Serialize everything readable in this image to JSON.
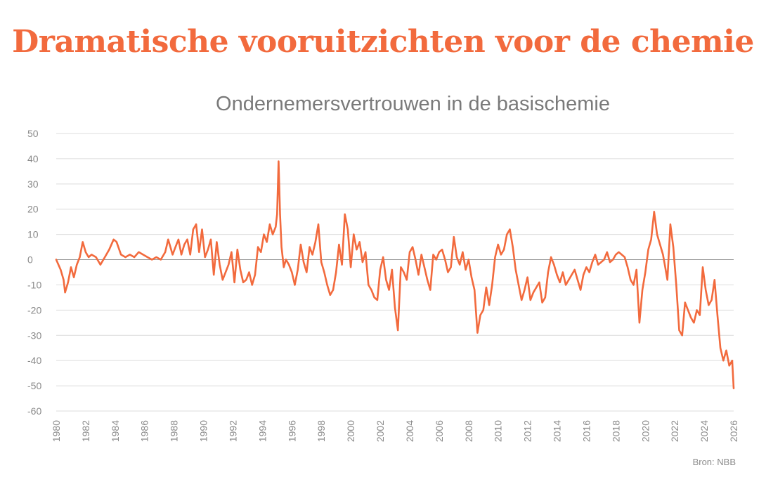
{
  "headline": "Dramatische vooruitzichten voor de chemie",
  "source": "Bron: NBB",
  "colors": {
    "line": "#f26a3d",
    "grid": "#dcdcdc",
    "zero_line": "#999999",
    "text": "#8a8a8a"
  },
  "chart_data": {
    "type": "line",
    "title": "Ondernemersvertrouwen in de basischemie",
    "xlabel": "",
    "ylabel": "",
    "xlim": [
      1980,
      2026
    ],
    "ylim": [
      -60,
      50
    ],
    "grid": true,
    "legend": "none",
    "x_ticks": [
      "1980",
      "1982",
      "1984",
      "1986",
      "1988",
      "1990",
      "1992",
      "1994",
      "1996",
      "1998",
      "2000",
      "2002",
      "2004",
      "2006",
      "2008",
      "2010",
      "2012",
      "2014",
      "2016",
      "2018",
      "2020",
      "2022",
      "2024",
      "2026"
    ],
    "y_ticks": [
      "50",
      "40",
      "30",
      "20",
      "10",
      "0",
      "-10",
      "-20",
      "-30",
      "-40",
      "-50",
      "-60"
    ],
    "series": [
      {
        "name": "Ondernemersvertrouwen",
        "x": [
          1980.0,
          1980.3,
          1980.5,
          1980.6,
          1980.8,
          1981.0,
          1981.2,
          1981.4,
          1981.6,
          1981.8,
          1982.0,
          1982.2,
          1982.4,
          1982.7,
          1983.0,
          1983.3,
          1983.6,
          1983.9,
          1984.1,
          1984.4,
          1984.7,
          1985.0,
          1985.3,
          1985.6,
          1985.9,
          1986.2,
          1986.5,
          1986.8,
          1987.1,
          1987.4,
          1987.6,
          1987.9,
          1988.1,
          1988.3,
          1988.5,
          1988.7,
          1988.9,
          1989.1,
          1989.3,
          1989.5,
          1989.7,
          1989.9,
          1990.1,
          1990.3,
          1990.5,
          1990.7,
          1990.9,
          1991.1,
          1991.3,
          1991.5,
          1991.7,
          1991.9,
          1992.1,
          1992.3,
          1992.5,
          1992.7,
          1992.9,
          1993.1,
          1993.3,
          1993.5,
          1993.7,
          1993.9,
          1994.1,
          1994.3,
          1994.5,
          1994.7,
          1994.9,
          1995.0,
          1995.1,
          1995.2,
          1995.3,
          1995.45,
          1995.6,
          1995.8,
          1996.0,
          1996.2,
          1996.4,
          1996.6,
          1996.8,
          1997.0,
          1997.2,
          1997.4,
          1997.6,
          1997.8,
          1998.0,
          1998.2,
          1998.4,
          1998.6,
          1998.8,
          1999.0,
          1999.2,
          1999.4,
          1999.6,
          1999.8,
          2000.0,
          2000.2,
          2000.4,
          2000.6,
          2000.8,
          2001.0,
          2001.2,
          2001.4,
          2001.6,
          2001.8,
          2002.0,
          2002.2,
          2002.4,
          2002.6,
          2002.8,
          2003.0,
          2003.2,
          2003.4,
          2003.6,
          2003.8,
          2004.0,
          2004.2,
          2004.4,
          2004.6,
          2004.8,
          2005.0,
          2005.2,
          2005.4,
          2005.6,
          2005.8,
          2006.0,
          2006.2,
          2006.4,
          2006.6,
          2006.8,
          2007.0,
          2007.2,
          2007.4,
          2007.6,
          2007.8,
          2008.0,
          2008.2,
          2008.4,
          2008.6,
          2008.8,
          2009.0,
          2009.2,
          2009.4,
          2009.6,
          2009.8,
          2010.0,
          2010.2,
          2010.4,
          2010.6,
          2010.8,
          2011.0,
          2011.2,
          2011.4,
          2011.6,
          2011.8,
          2012.0,
          2012.2,
          2012.4,
          2012.6,
          2012.8,
          2013.0,
          2013.2,
          2013.4,
          2013.6,
          2013.8,
          2014.0,
          2014.2,
          2014.4,
          2014.6,
          2014.8,
          2015.0,
          2015.2,
          2015.4,
          2015.6,
          2015.8,
          2016.0,
          2016.2,
          2016.4,
          2016.6,
          2016.8,
          2017.0,
          2017.2,
          2017.4,
          2017.6,
          2017.8,
          2018.0,
          2018.2,
          2018.4,
          2018.6,
          2018.8,
          2019.0,
          2019.2,
          2019.4,
          2019.6,
          2019.8,
          2020.0,
          2020.2,
          2020.4,
          2020.6,
          2020.8,
          2021.0,
          2021.2,
          2021.35,
          2021.5,
          2021.7,
          2021.9,
          2022.1,
          2022.3,
          2022.5,
          2022.7,
          2022.9,
          2023.1,
          2023.3,
          2023.5,
          2023.7,
          2023.9,
          2024.1,
          2024.3,
          2024.5,
          2024.7,
          2024.9,
          2025.1,
          2025.3,
          2025.5,
          2025.7,
          2025.9,
          2026.0
        ],
        "values": [
          0,
          -4,
          -8,
          -13,
          -9,
          -3,
          -7,
          -2,
          1,
          7,
          3,
          1,
          2,
          1,
          -2,
          1,
          4,
          8,
          7,
          2,
          1,
          2,
          1,
          3,
          2,
          1,
          0,
          1,
          0,
          3,
          8,
          2,
          5,
          8,
          2,
          6,
          8,
          2,
          12,
          14,
          3,
          12,
          1,
          4,
          8,
          -6,
          7,
          -2,
          -8,
          -5,
          -2,
          3,
          -9,
          4,
          -4,
          -9,
          -8,
          -5,
          -10,
          -6,
          5,
          3,
          10,
          7,
          14,
          10,
          13,
          18,
          39,
          18,
          5,
          -3,
          0,
          -2,
          -5,
          -10,
          -4,
          6,
          -1,
          -5,
          5,
          2,
          7,
          14,
          -1,
          -5,
          -10,
          -14,
          -12,
          -5,
          6,
          -2,
          18,
          12,
          -3,
          10,
          4,
          7,
          -1,
          3,
          -10,
          -12,
          -15,
          -16,
          -4,
          1,
          -8,
          -12,
          -4,
          -19,
          -28,
          -3,
          -5,
          -8,
          3,
          5,
          0,
          -6,
          2,
          -3,
          -8,
          -12,
          2,
          0,
          3,
          4,
          0,
          -5,
          -3,
          9,
          1,
          -2,
          3,
          -4,
          0,
          -7,
          -12,
          -29,
          -22,
          -20,
          -11,
          -18,
          -10,
          1,
          6,
          2,
          4,
          10,
          12,
          5,
          -4,
          -10,
          -16,
          -12,
          -7,
          -16,
          -13,
          -11,
          -9,
          -17,
          -15,
          -5,
          1,
          -2,
          -6,
          -9,
          -5,
          -10,
          -8,
          -6,
          -4,
          -8,
          -12,
          -6,
          -3,
          -5,
          -1,
          2,
          -2,
          -1,
          0,
          3,
          -1,
          0,
          2,
          3,
          2,
          1,
          -3,
          -8,
          -10,
          -4,
          -25,
          -12,
          -5,
          4,
          8,
          19,
          10,
          6,
          2,
          -3,
          -8,
          14,
          5,
          -10,
          -28,
          -30,
          -17,
          -20,
          -23,
          -25,
          -20,
          -22,
          -3,
          -12,
          -18,
          -16,
          -8,
          -22,
          -35,
          -40,
          -36,
          -42,
          -40,
          -51
        ]
      }
    ]
  }
}
